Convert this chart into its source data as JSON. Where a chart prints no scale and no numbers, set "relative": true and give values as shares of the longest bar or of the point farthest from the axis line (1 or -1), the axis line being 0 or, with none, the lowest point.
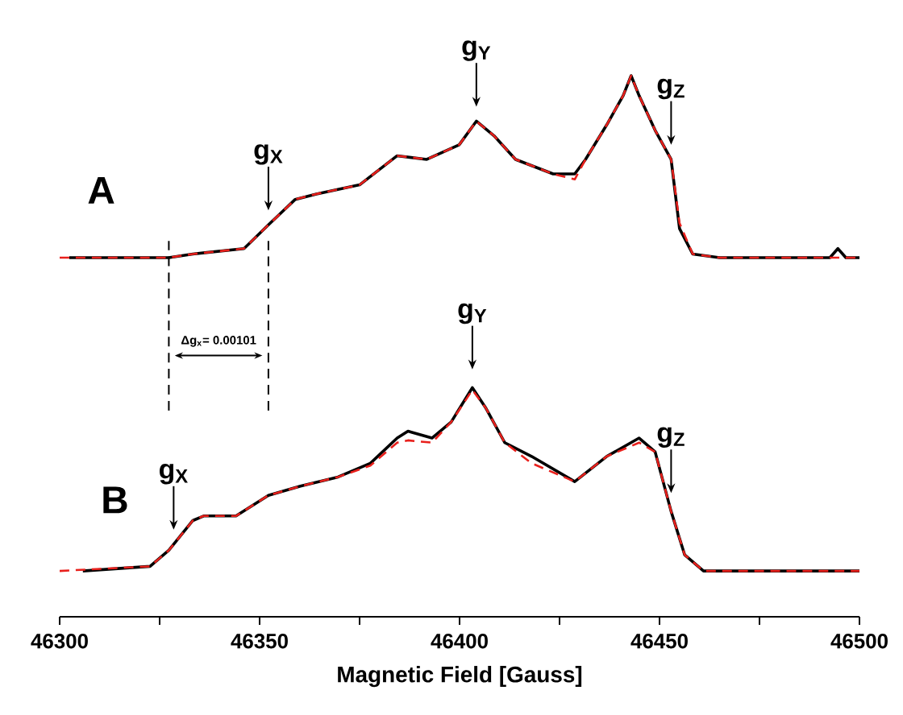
{
  "chart_data": [
    {
      "type": "line",
      "relative": true,
      "xlim": [
        46300,
        46500
      ],
      "tick_labels": false,
      "series": [
        {
          "name": "A",
          "color": "#000000",
          "line_style": "solid",
          "x": [
            46302.4,
            46327.3,
            46333.3,
            46346.1,
            46352.2,
            46358.9,
            46364.2,
            46375,
            46384.4,
            46391.8,
            46399.9,
            46404.2,
            46408.6,
            46414,
            46423.4,
            46428.8,
            46431.5,
            46436.8,
            46440.9,
            46442.9,
            46444.9,
            46448.9,
            46452.9,
            46455,
            46458.3,
            46465,
            46485.2,
            46492.6,
            46494.6,
            46496.6,
            46500
          ],
          "values": [
            0,
            0,
            0.02,
            0.05,
            0.18,
            0.32,
            0.35,
            0.4,
            0.56,
            0.54,
            0.62,
            0.75,
            0.67,
            0.54,
            0.46,
            0.46,
            0.54,
            0.73,
            0.89,
            1,
            0.89,
            0.7,
            0.54,
            0.16,
            0.02,
            0,
            0,
            0,
            0.05,
            0,
            0
          ]
        },
        {
          "color": "#e8201c",
          "line_style": "dashed",
          "x": [
            46300,
            46327.3,
            46333.3,
            46346.1,
            46352.2,
            46358.9,
            46364.2,
            46375,
            46384.4,
            46391.8,
            46399.9,
            46404.2,
            46408.6,
            46414,
            46423.4,
            46428.8,
            46431.5,
            46436.8,
            46440.9,
            46442.9,
            46444.9,
            46448.9,
            46452.9,
            46455,
            46458.3,
            46465,
            46485.2,
            46500
          ],
          "values": [
            0,
            0,
            0.02,
            0.05,
            0.18,
            0.32,
            0.35,
            0.4,
            0.56,
            0.54,
            0.62,
            0.75,
            0.67,
            0.54,
            0.46,
            0.43,
            0.54,
            0.73,
            0.89,
            1,
            0.89,
            0.7,
            0.54,
            0.19,
            0.02,
            0,
            0,
            0
          ]
        }
      ],
      "annotations": [
        {
          "text": "g$_{X}$",
          "x": 46352.2,
          "y": 0.18
        },
        {
          "text": "g$_{Y}$",
          "x": 46404.2,
          "y": 0.75
        },
        {
          "text": "g$_{Z}$",
          "x": 46452.9,
          "y": 0.54
        }
      ]
    },
    {
      "type": "line",
      "relative": true,
      "xlabel": "Magnetic Field [Gauss]",
      "xlim": [
        46300,
        46500
      ],
      "xticks": [
        46300,
        {
          "value": 46325,
          "label": null
        },
        46350,
        {
          "value": 46375,
          "label": null
        },
        46400,
        {
          "value": 46425,
          "label": null
        },
        46450,
        {
          "value": 46475,
          "label": null
        },
        46500
      ],
      "tick_labels": "x",
      "series": [
        {
          "name": "B",
          "color": "#000000",
          "line_style": "solid",
          "x": [
            46305.8,
            46322.6,
            46327.3,
            46333.3,
            46336,
            46344.1,
            46352.2,
            46360.2,
            46369.6,
            46377.7,
            46384.4,
            46387.1,
            46393.1,
            46397.9,
            46403.2,
            46406.6,
            46411.3,
            46418,
            46428.8,
            46436.8,
            46444.9,
            46448.9,
            46452.9,
            46456.3,
            46461,
            46478.5,
            46500
          ],
          "values": [
            0.2,
            0.22,
            0.29,
            0.42,
            0.44,
            0.44,
            0.53,
            0.57,
            0.61,
            0.67,
            0.78,
            0.81,
            0.78,
            0.85,
            1,
            0.91,
            0.76,
            0.7,
            0.59,
            0.7,
            0.78,
            0.72,
            0.46,
            0.27,
            0.2,
            0.2,
            0.2
          ]
        },
        {
          "color": "#e8201c",
          "line_style": "dashed",
          "x": [
            46300,
            46322.6,
            46327.3,
            46333.3,
            46336,
            46344.1,
            46352.2,
            46360.2,
            46369.6,
            46377.7,
            46384.4,
            46387.1,
            46393.1,
            46397.9,
            46403.2,
            46406.6,
            46411.3,
            46418,
            46428.8,
            46436.8,
            46444.9,
            46448.9,
            46452.9,
            46456.3,
            46461,
            46478.5,
            46500
          ],
          "values": [
            0.2,
            0.22,
            0.29,
            0.42,
            0.44,
            0.44,
            0.53,
            0.57,
            0.61,
            0.66,
            0.76,
            0.77,
            0.76,
            0.85,
            0.99,
            0.91,
            0.76,
            0.67,
            0.59,
            0.7,
            0.76,
            0.72,
            0.46,
            0.27,
            0.2,
            0.2,
            0.2
          ]
        }
      ],
      "ref_lines": [
        {
          "axis": "x",
          "value": 46327.3,
          "line_style": "dashed",
          "color": "#000000"
        },
        {
          "axis": "x",
          "value": 46352.2,
          "line_style": "dashed",
          "color": "#000000"
        }
      ],
      "annotations": [
        {
          "text": "g$_{X}$",
          "x": 46328.5,
          "y": 0.3
        },
        {
          "text": "g$_{Y}$",
          "x": 46403.2,
          "y": 1
        },
        {
          "text": "g$_{Z}$",
          "x": 46452.9,
          "y": 0.46
        },
        "Δg$_{x}$= 0.00101"
      ]
    }
  ]
}
